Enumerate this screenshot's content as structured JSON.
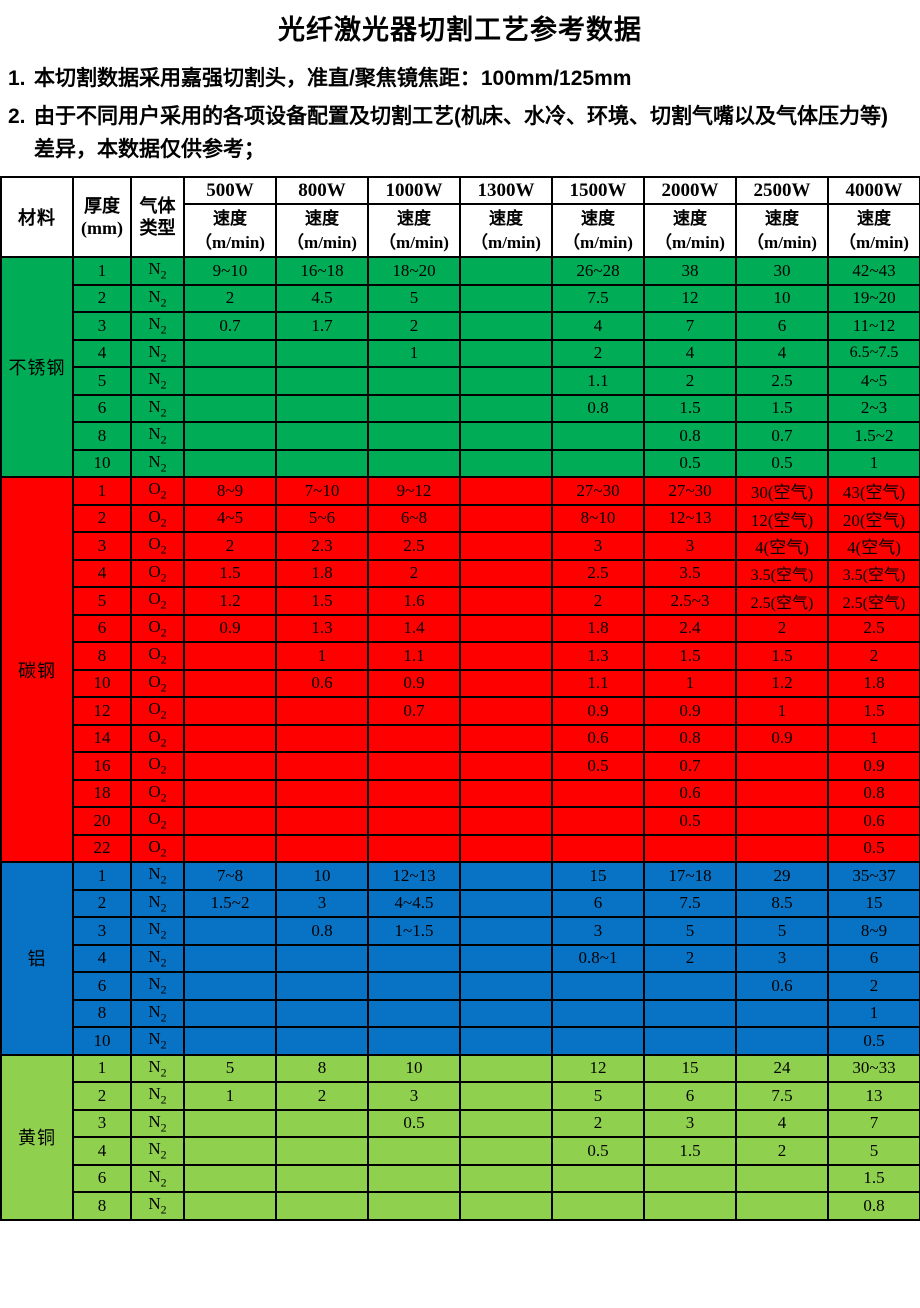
{
  "title": "光纤激光器切割工艺参考数据",
  "notes": [
    {
      "num": "1.",
      "text": "本切割数据采用嘉强切割头，准直/聚焦镜焦距：100mm/125mm"
    },
    {
      "num": "2.",
      "text": "由于不同用户采用的各项设备配置及切割工艺(机床、水冷、环境、切割气嘴以及气体压力等)差异，本数据仅供参考；"
    }
  ],
  "table": {
    "header": {
      "material": "材料",
      "thickness_lines": [
        "厚度",
        "(mm)"
      ],
      "gas_lines": [
        "气体",
        "类型"
      ],
      "powers": [
        "500W",
        "800W",
        "1000W",
        "1300W",
        "1500W",
        "2000W",
        "2500W",
        "4000W"
      ],
      "speed_label": "速度",
      "speed_unit": "（m/min)"
    },
    "colors": {
      "stainless": "#00AC55",
      "carbon": "#FF0000",
      "aluminum": "#0873C4",
      "brass": "#8FD14F",
      "grid": "#000000"
    },
    "sections": [
      {
        "material": "不锈钢",
        "color_key": "stainless",
        "rows": [
          {
            "thickness": "1",
            "gas": "N2",
            "speeds": [
              "9~10",
              "16~18",
              "18~20",
              "",
              "26~28",
              "38",
              "30",
              "42~43"
            ]
          },
          {
            "thickness": "2",
            "gas": "N2",
            "speeds": [
              "2",
              "4.5",
              "5",
              "",
              "7.5",
              "12",
              "10",
              "19~20"
            ]
          },
          {
            "thickness": "3",
            "gas": "N2",
            "speeds": [
              "0.7",
              "1.7",
              "2",
              "",
              "4",
              "7",
              "6",
              "11~12"
            ]
          },
          {
            "thickness": "4",
            "gas": "N2",
            "speeds": [
              "",
              "",
              "1",
              "",
              "2",
              "4",
              "4",
              "6.5~7.5"
            ]
          },
          {
            "thickness": "5",
            "gas": "N2",
            "speeds": [
              "",
              "",
              "",
              "",
              "1.1",
              "2",
              "2.5",
              "4~5"
            ]
          },
          {
            "thickness": "6",
            "gas": "N2",
            "speeds": [
              "",
              "",
              "",
              "",
              "0.8",
              "1.5",
              "1.5",
              "2~3"
            ]
          },
          {
            "thickness": "8",
            "gas": "N2",
            "speeds": [
              "",
              "",
              "",
              "",
              "",
              "0.8",
              "0.7",
              "1.5~2"
            ]
          },
          {
            "thickness": "10",
            "gas": "N2",
            "speeds": [
              "",
              "",
              "",
              "",
              "",
              "0.5",
              "0.5",
              "1"
            ]
          }
        ]
      },
      {
        "material": "碳钢",
        "color_key": "carbon",
        "rows": [
          {
            "thickness": "1",
            "gas": "O2",
            "speeds": [
              "8~9",
              "7~10",
              "9~12",
              "",
              "27~30",
              "27~30",
              "30(空气)",
              "43(空气)"
            ]
          },
          {
            "thickness": "2",
            "gas": "O2",
            "speeds": [
              "4~5",
              "5~6",
              "6~8",
              "",
              "8~10",
              "12~13",
              "12(空气)",
              "20(空气)"
            ]
          },
          {
            "thickness": "3",
            "gas": "O2",
            "speeds": [
              "2",
              "2.3",
              "2.5",
              "",
              "3",
              "3",
              "4(空气)",
              "4(空气)"
            ]
          },
          {
            "thickness": "4",
            "gas": "O2",
            "speeds": [
              "1.5",
              "1.8",
              "2",
              "",
              "2.5",
              "3.5",
              "3.5(空气)",
              "3.5(空气)"
            ]
          },
          {
            "thickness": "5",
            "gas": "O2",
            "speeds": [
              "1.2",
              "1.5",
              "1.6",
              "",
              "2",
              "2.5~3",
              "2.5(空气)",
              "2.5(空气)"
            ]
          },
          {
            "thickness": "6",
            "gas": "O2",
            "speeds": [
              "0.9",
              "1.3",
              "1.4",
              "",
              "1.8",
              "2.4",
              "2",
              "2.5"
            ]
          },
          {
            "thickness": "8",
            "gas": "O2",
            "speeds": [
              "",
              "1",
              "1.1",
              "",
              "1.3",
              "1.5",
              "1.5",
              "2"
            ]
          },
          {
            "thickness": "10",
            "gas": "O2",
            "speeds": [
              "",
              "0.6",
              "0.9",
              "",
              "1.1",
              "1",
              "1.2",
              "1.8"
            ]
          },
          {
            "thickness": "12",
            "gas": "O2",
            "speeds": [
              "",
              "",
              "0.7",
              "",
              "0.9",
              "0.9",
              "1",
              "1.5"
            ]
          },
          {
            "thickness": "14",
            "gas": "O2",
            "speeds": [
              "",
              "",
              "",
              "",
              "0.6",
              "0.8",
              "0.9",
              "1"
            ]
          },
          {
            "thickness": "16",
            "gas": "O2",
            "speeds": [
              "",
              "",
              "",
              "",
              "0.5",
              "0.7",
              "",
              "0.9"
            ]
          },
          {
            "thickness": "18",
            "gas": "O2",
            "speeds": [
              "",
              "",
              "",
              "",
              "",
              "0.6",
              "",
              "0.8"
            ]
          },
          {
            "thickness": "20",
            "gas": "O2",
            "speeds": [
              "",
              "",
              "",
              "",
              "",
              "0.5",
              "",
              "0.6"
            ]
          },
          {
            "thickness": "22",
            "gas": "O2",
            "speeds": [
              "",
              "",
              "",
              "",
              "",
              "",
              "",
              "0.5"
            ]
          }
        ]
      },
      {
        "material": "铝",
        "color_key": "aluminum",
        "rows": [
          {
            "thickness": "1",
            "gas": "N2",
            "speeds": [
              "7~8",
              "10",
              "12~13",
              "",
              "15",
              "17~18",
              "29",
              "35~37"
            ]
          },
          {
            "thickness": "2",
            "gas": "N2",
            "speeds": [
              "1.5~2",
              "3",
              "4~4.5",
              "",
              "6",
              "7.5",
              "8.5",
              "15"
            ]
          },
          {
            "thickness": "3",
            "gas": "N2",
            "speeds": [
              "",
              "0.8",
              "1~1.5",
              "",
              "3",
              "5",
              "5",
              "8~9"
            ]
          },
          {
            "thickness": "4",
            "gas": "N2",
            "speeds": [
              "",
              "",
              "",
              "",
              "0.8~1",
              "2",
              "3",
              "6"
            ]
          },
          {
            "thickness": "6",
            "gas": "N2",
            "speeds": [
              "",
              "",
              "",
              "",
              "",
              "",
              "0.6",
              "2"
            ]
          },
          {
            "thickness": "8",
            "gas": "N2",
            "speeds": [
              "",
              "",
              "",
              "",
              "",
              "",
              "",
              "1"
            ]
          },
          {
            "thickness": "10",
            "gas": "N2",
            "speeds": [
              "",
              "",
              "",
              "",
              "",
              "",
              "",
              "0.5"
            ]
          }
        ]
      },
      {
        "material": "黄铜",
        "color_key": "brass",
        "rows": [
          {
            "thickness": "1",
            "gas": "N2",
            "speeds": [
              "5",
              "8",
              "10",
              "",
              "12",
              "15",
              "24",
              "30~33"
            ]
          },
          {
            "thickness": "2",
            "gas": "N2",
            "speeds": [
              "1",
              "2",
              "3",
              "",
              "5",
              "6",
              "7.5",
              "13"
            ]
          },
          {
            "thickness": "3",
            "gas": "N2",
            "speeds": [
              "",
              "",
              "0.5",
              "",
              "2",
              "3",
              "4",
              "7"
            ]
          },
          {
            "thickness": "4",
            "gas": "N2",
            "speeds": [
              "",
              "",
              "",
              "",
              "0.5",
              "1.5",
              "2",
              "5"
            ]
          },
          {
            "thickness": "6",
            "gas": "N2",
            "speeds": [
              "",
              "",
              "",
              "",
              "",
              "",
              "",
              "1.5"
            ]
          },
          {
            "thickness": "8",
            "gas": "N2",
            "speeds": [
              "",
              "",
              "",
              "",
              "",
              "",
              "",
              "0.8"
            ]
          }
        ]
      }
    ]
  }
}
